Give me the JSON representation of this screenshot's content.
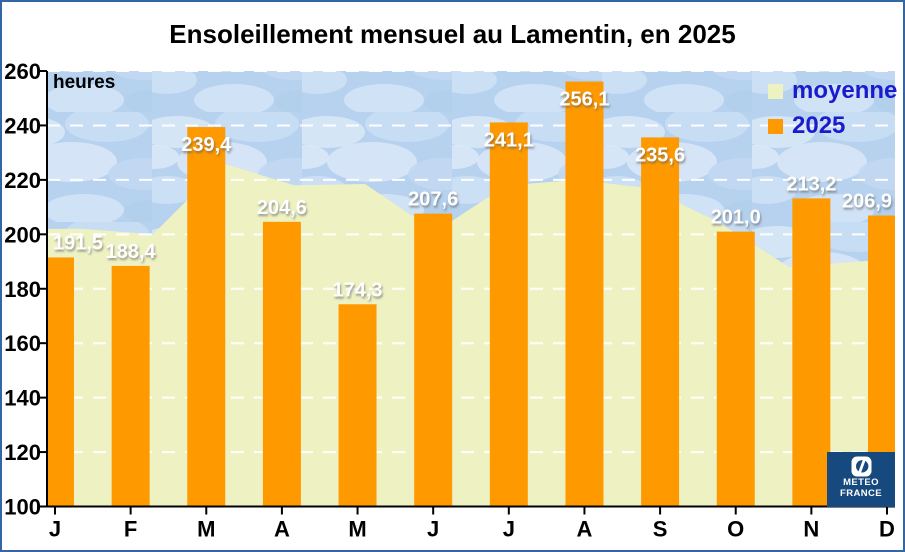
{
  "title": "Ensoleillement mensuel au Lamentin, en 2025",
  "y_axis": {
    "unit_label": "heures",
    "ticks": [
      100,
      120,
      140,
      160,
      180,
      200,
      220,
      240,
      260
    ]
  },
  "x_axis": {
    "labels": [
      "J",
      "F",
      "M",
      "A",
      "M",
      "J",
      "J",
      "A",
      "S",
      "O",
      "N",
      "D"
    ]
  },
  "legend": [
    {
      "label": "moyenne",
      "color": "#EEF2C3"
    },
    {
      "label": "2025",
      "color": "#FF9900"
    }
  ],
  "logo": {
    "line1": "METEO",
    "line2": "FRANCE"
  },
  "colors": {
    "bar": "#FF9900",
    "average_area": "#EEF2C3",
    "sky": "#B7D2EF",
    "gridline": "#FFFFFF",
    "frame_border": "#3465A4",
    "legend_text": "#1B1BCE",
    "logo_background": "#164A7E"
  },
  "chart_data": {
    "type": "bar",
    "title": "Ensoleillement mensuel au Lamentin, en 2025",
    "ylabel": "heures",
    "ylim": [
      100,
      260
    ],
    "ytick_step": 20,
    "grid": "horizontal-white-dashed",
    "legend_position": "top-right",
    "categories": [
      "J",
      "F",
      "M",
      "A",
      "M",
      "J",
      "J",
      "A",
      "S",
      "O",
      "N",
      "D"
    ],
    "series": [
      {
        "name": "2025",
        "type": "bar",
        "color": "#FF9900",
        "values": [
          191.5,
          188.4,
          239.4,
          204.6,
          174.3,
          207.6,
          241.1,
          256.1,
          235.6,
          201.0,
          213.2,
          206.9
        ],
        "value_labels": [
          "191,5",
          "188,4",
          "239,4",
          "204,6",
          "174,3",
          "207,6",
          "241,1",
          "256,1",
          "235,6",
          "201,0",
          "213,2",
          "206,9"
        ]
      },
      {
        "name": "moyenne",
        "type": "area",
        "color": "#EEF2C3",
        "values": [
          202,
          200,
          226,
          218,
          218.5,
          201,
          218,
          220,
          217,
          204.5,
          188,
          190
        ]
      }
    ]
  }
}
